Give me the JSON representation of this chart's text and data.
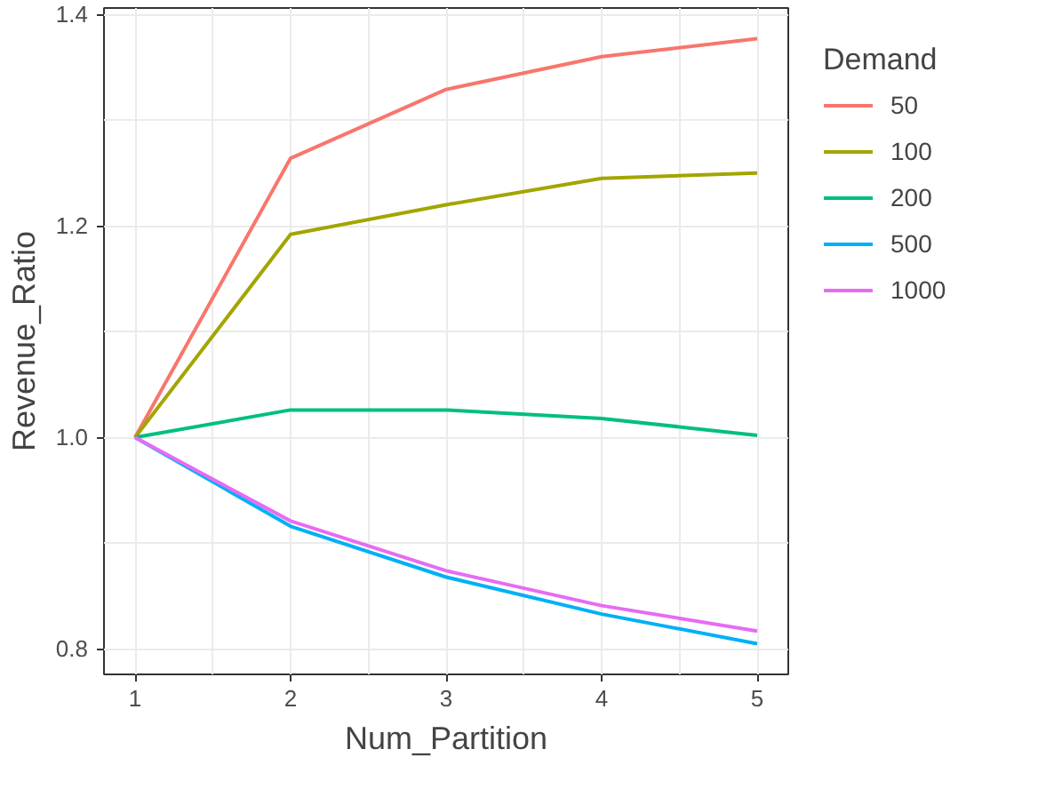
{
  "chart_data": {
    "type": "line",
    "xlabel": "Num_Partition",
    "ylabel": "Revenue_Ratio",
    "legend_title": "Demand",
    "legend": "right",
    "grid": true,
    "x": [
      1,
      2,
      3,
      4,
      5
    ],
    "xlim": [
      0.8,
      5.2
    ],
    "xticks": [
      1,
      {
        "value": 1.5,
        "label": null
      },
      2,
      {
        "value": 2.5,
        "label": null
      },
      3,
      {
        "value": 3.5,
        "label": null
      },
      4,
      {
        "value": 4.5,
        "label": null
      },
      5
    ],
    "ylim": [
      0.776,
      1.406
    ],
    "yticks": [
      {
        "value": 0.8,
        "label": "0.8"
      },
      {
        "value": 0.9,
        "label": null
      },
      {
        "value": 1.0,
        "label": "1.0"
      },
      {
        "value": 1.1,
        "label": null
      },
      {
        "value": 1.2,
        "label": "1.2"
      },
      {
        "value": 1.3,
        "label": null
      },
      {
        "value": 1.4,
        "label": "1.4"
      }
    ],
    "series": [
      {
        "name": "50",
        "color": "#f8766d",
        "values": [
          1.0,
          1.264,
          1.329,
          1.36,
          1.377
        ]
      },
      {
        "name": "100",
        "color": "#a3a500",
        "values": [
          1.0,
          1.192,
          1.22,
          1.245,
          1.25
        ]
      },
      {
        "name": "200",
        "color": "#00bf7d",
        "values": [
          1.0,
          1.026,
          1.026,
          1.018,
          1.002
        ]
      },
      {
        "name": "500",
        "color": "#00b0f6",
        "values": [
          1.0,
          0.916,
          0.868,
          0.833,
          0.805
        ]
      },
      {
        "name": "1000",
        "color": "#e76bf3",
        "values": [
          1.0,
          0.921,
          0.874,
          0.841,
          0.817
        ]
      }
    ]
  }
}
